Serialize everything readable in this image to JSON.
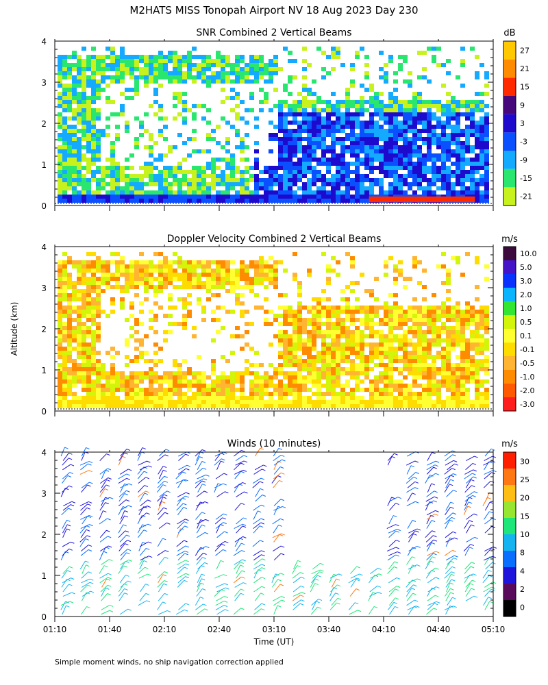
{
  "title": "M2HATS MISS Tonopah Airport NV  18 Aug 2023 Day 230",
  "ylabel": "Altitude (km)",
  "xlabel": "Time (UT)",
  "footnote": "Simple moment winds, no ship navigation correction applied",
  "chart_data": [
    {
      "type": "heatmap",
      "title": "SNR Combined 2 Vertical Beams",
      "x_range_minutes": [
        70,
        310
      ],
      "x_ticks": [
        "01:10",
        "01:40",
        "02:10",
        "02:40",
        "03:10",
        "03:40",
        "04:10",
        "04:40",
        "05:10"
      ],
      "ylim": [
        0,
        4
      ],
      "y_ticks": [
        "0",
        "1",
        "2",
        "3",
        "4"
      ],
      "colorbar": {
        "unit": "dB",
        "levels": [
          "-21",
          "-15",
          "-9",
          "-3",
          "3",
          "9",
          "15",
          "21",
          "27"
        ],
        "colors": [
          "#c8f21e",
          "#28e66e",
          "#14aaff",
          "#0a50ff",
          "#1e0acc",
          "#46087a",
          "#ff2a00",
          "#ff8c00",
          "#ffc800"
        ]
      }
    },
    {
      "type": "heatmap",
      "title": "Doppler Velocity Combined 2 Vertical Beams",
      "x_range_minutes": [
        70,
        310
      ],
      "x_ticks": [
        "01:10",
        "01:40",
        "02:10",
        "02:40",
        "03:10",
        "03:40",
        "04:10",
        "04:40",
        "05:10"
      ],
      "ylim": [
        0,
        4
      ],
      "y_ticks": [
        "0",
        "1",
        "2",
        "3",
        "4"
      ],
      "colorbar": {
        "unit": "m/s",
        "levels": [
          "-3.0",
          "-2.0",
          "-1.0",
          "-0.5",
          "-0.1",
          "0.1",
          "0.5",
          "1.0",
          "2.0",
          "3.0",
          "5.0",
          "10.0"
        ],
        "colors": [
          "#ff1e1e",
          "#ff5a00",
          "#ff8c00",
          "#ffb432",
          "#ffdc00",
          "#ffff32",
          "#d2f50a",
          "#32e632",
          "#0ab4ff",
          "#0a32ff",
          "#4614c8",
          "#3c0a3c"
        ]
      }
    },
    {
      "type": "barbs",
      "title": "Winds (10 minutes)",
      "x_range_minutes": [
        70,
        310
      ],
      "x_ticks": [
        "01:10",
        "01:40",
        "02:10",
        "02:40",
        "03:10",
        "03:40",
        "04:10",
        "04:40",
        "05:10"
      ],
      "ylim": [
        0,
        4
      ],
      "y_ticks": [
        "0",
        "1",
        "2",
        "3",
        "4"
      ],
      "colorbar": {
        "unit": "m/s",
        "levels": [
          "0",
          "2",
          "4",
          "8",
          "10",
          "15",
          "20",
          "25",
          "30"
        ],
        "colors": [
          "#000000",
          "#5a0a5a",
          "#1e14dc",
          "#0a6eff",
          "#14b4f0",
          "#1ee678",
          "#96e632",
          "#ffbe14",
          "#ff7814",
          "#ff1e00"
        ]
      }
    }
  ]
}
